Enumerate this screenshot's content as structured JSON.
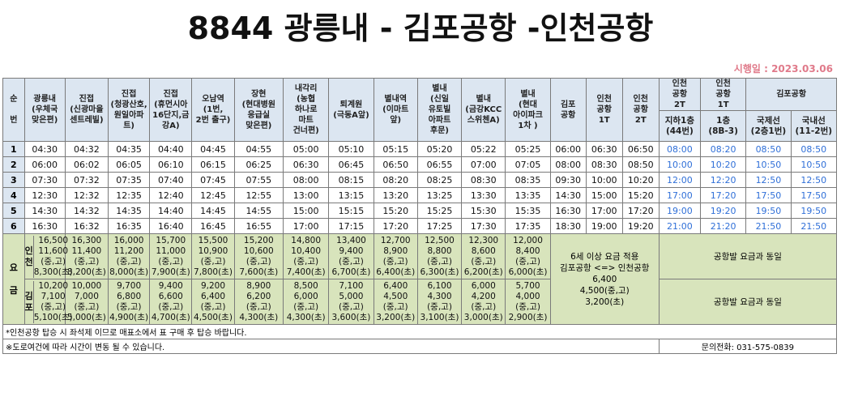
{
  "title": "8844 광릉내 - 김포공항 -인천공항",
  "effective_date": "시행일 : 2023.03.06",
  "header": {
    "order": "순\n\n번",
    "stops": [
      "광릉내\n(우체국\n맞은편)",
      "진접\n(신광마을\n센트레빌)",
      "진접\n(청광산호,\n원일아파\n트)",
      "진접\n(휴먼시아\n16단지,금\n강A)",
      "오남역\n(1번,\n2번 출구)",
      "장현\n(현대병원\n응급실\n맞은편)",
      "내각리\n(농협\n하나로\n마트\n건너편)",
      "퇴계원\n(극동A앞)",
      "별내역\n(이마트\n앞)",
      "별내\n(신일\n유토빌\n아파트\n후문)",
      "별내\n(금강KCC\n스위첸A)",
      "별내\n(현대\n아이파크\n1차 )",
      "김포\n공항",
      "인천\n공항\n1T",
      "인천\n공항\n2T"
    ],
    "return_groups": [
      "인천\n공항\n2T",
      "인천\n공항\n1T",
      "김포공항"
    ],
    "return_sub": [
      "지하1층\n(44번)",
      "1층\n(8B-3)",
      "국제선\n(2층1번)",
      "국내선\n(11-2번)"
    ]
  },
  "rows": [
    {
      "no": "1",
      "times": [
        "04:30",
        "04:32",
        "04:35",
        "04:40",
        "04:45",
        "04:55",
        "05:00",
        "05:10",
        "05:15",
        "05:20",
        "05:22",
        "05:25",
        "06:00",
        "06:30",
        "06:50"
      ],
      "ret": [
        "08:00",
        "08:20",
        "08:50",
        "08:50"
      ]
    },
    {
      "no": "2",
      "times": [
        "06:00",
        "06:02",
        "06:05",
        "06:10",
        "06:15",
        "06:25",
        "06:30",
        "06:45",
        "06:50",
        "06:55",
        "07:00",
        "07:05",
        "08:00",
        "08:30",
        "08:50"
      ],
      "ret": [
        "10:00",
        "10:20",
        "10:50",
        "10:50"
      ]
    },
    {
      "no": "3",
      "times": [
        "07:30",
        "07:32",
        "07:35",
        "07:40",
        "07:45",
        "07:55",
        "08:00",
        "08:15",
        "08:20",
        "08:25",
        "08:30",
        "08:35",
        "09:30",
        "10:00",
        "10:20"
      ],
      "ret": [
        "12:00",
        "12:20",
        "12:50",
        "12:50"
      ]
    },
    {
      "no": "4",
      "times": [
        "12:30",
        "12:32",
        "12:35",
        "12:40",
        "12:45",
        "12:55",
        "13:00",
        "13:15",
        "13:20",
        "13:25",
        "13:30",
        "13:35",
        "14:30",
        "15:00",
        "15:20"
      ],
      "ret": [
        "17:00",
        "17:20",
        "17:50",
        "17:50"
      ]
    },
    {
      "no": "5",
      "times": [
        "14:30",
        "14:32",
        "14:35",
        "14:40",
        "14:45",
        "14:55",
        "15:00",
        "15:15",
        "15:20",
        "15:25",
        "15:30",
        "15:35",
        "16:30",
        "17:00",
        "17:20"
      ],
      "ret": [
        "19:00",
        "19:20",
        "19:50",
        "19:50"
      ]
    },
    {
      "no": "6",
      "times": [
        "16:30",
        "16:32",
        "16:35",
        "16:40",
        "16:45",
        "16:55",
        "17:00",
        "17:15",
        "17:20",
        "17:25",
        "17:30",
        "17:35",
        "18:30",
        "19:00",
        "19:20"
      ],
      "ret": [
        "21:00",
        "21:20",
        "21:50",
        "21:50"
      ]
    }
  ],
  "fare": {
    "label": "요\n\n금",
    "incheon_label": "인\n천",
    "gimpo_label": "김\n포",
    "incheon": [
      "16,500\n11,600\n(중,고)\n8,300(초)",
      "16,300\n11,400\n(중,고)\n8,200(초)",
      "16,000\n11,200\n(중,고)\n8,000(초)",
      "15,700\n11,000\n(중,고)\n7,900(초)",
      "15,500\n10,900\n(중,고)\n7,800(초)",
      "15,200\n10,600\n(중,고)\n7,600(초)",
      "14,800\n10,400\n(중,고)\n7,400(초)",
      "13,400\n9,400\n(중,고)\n6,700(초)",
      "12,700\n8,900\n(중,고)\n6,400(초)",
      "12,500\n8,800\n(중,고)\n6,300(초)",
      "12,300\n8,600\n(중,고)\n6,200(초)",
      "12,000\n8,400\n(중,고)\n6,000(초)"
    ],
    "gimpo": [
      "10,200\n7,100\n(중,고)\n5,100(초)",
      "10,000\n7,000\n(중,고)\n5,000(초)",
      "9,700\n6,800\n(중,고)\n4,900(초)",
      "9,400\n6,600\n(중,고)\n4,700(초)",
      "9,200\n6,400\n(중,고)\n4,500(초)",
      "8,900\n6,200\n(중,고)\n4,300(초)",
      "8,500\n6,000\n(중,고)\n4,300(초)",
      "7,100\n5,000\n(중,고)\n3,600(초)",
      "6,400\n4,500\n(중,고)\n3,200(초)",
      "6,100\n4,300\n(중,고)\n3,100(초)",
      "6,000\n4,200\n(중,고)\n3,000(초)",
      "5,700\n4,000\n(중,고)\n2,900(초)"
    ],
    "airport_note": "6세 이상 요금 적용\n김포공항 <=> 인천공항\n6,400\n4,500(중,고)\n3,200(초)",
    "same_as_departure": "공항발 요금과 동일"
  },
  "footer": {
    "note1": "*인천공항 탑승 시 좌석제 이므로 매표소에서 표 구매 후 탑승 바랍니다.",
    "note2": "※도로여건에 따라 시간이 변동 될 수 있습니다.",
    "contact": "문의전화: 031-575-0839"
  }
}
